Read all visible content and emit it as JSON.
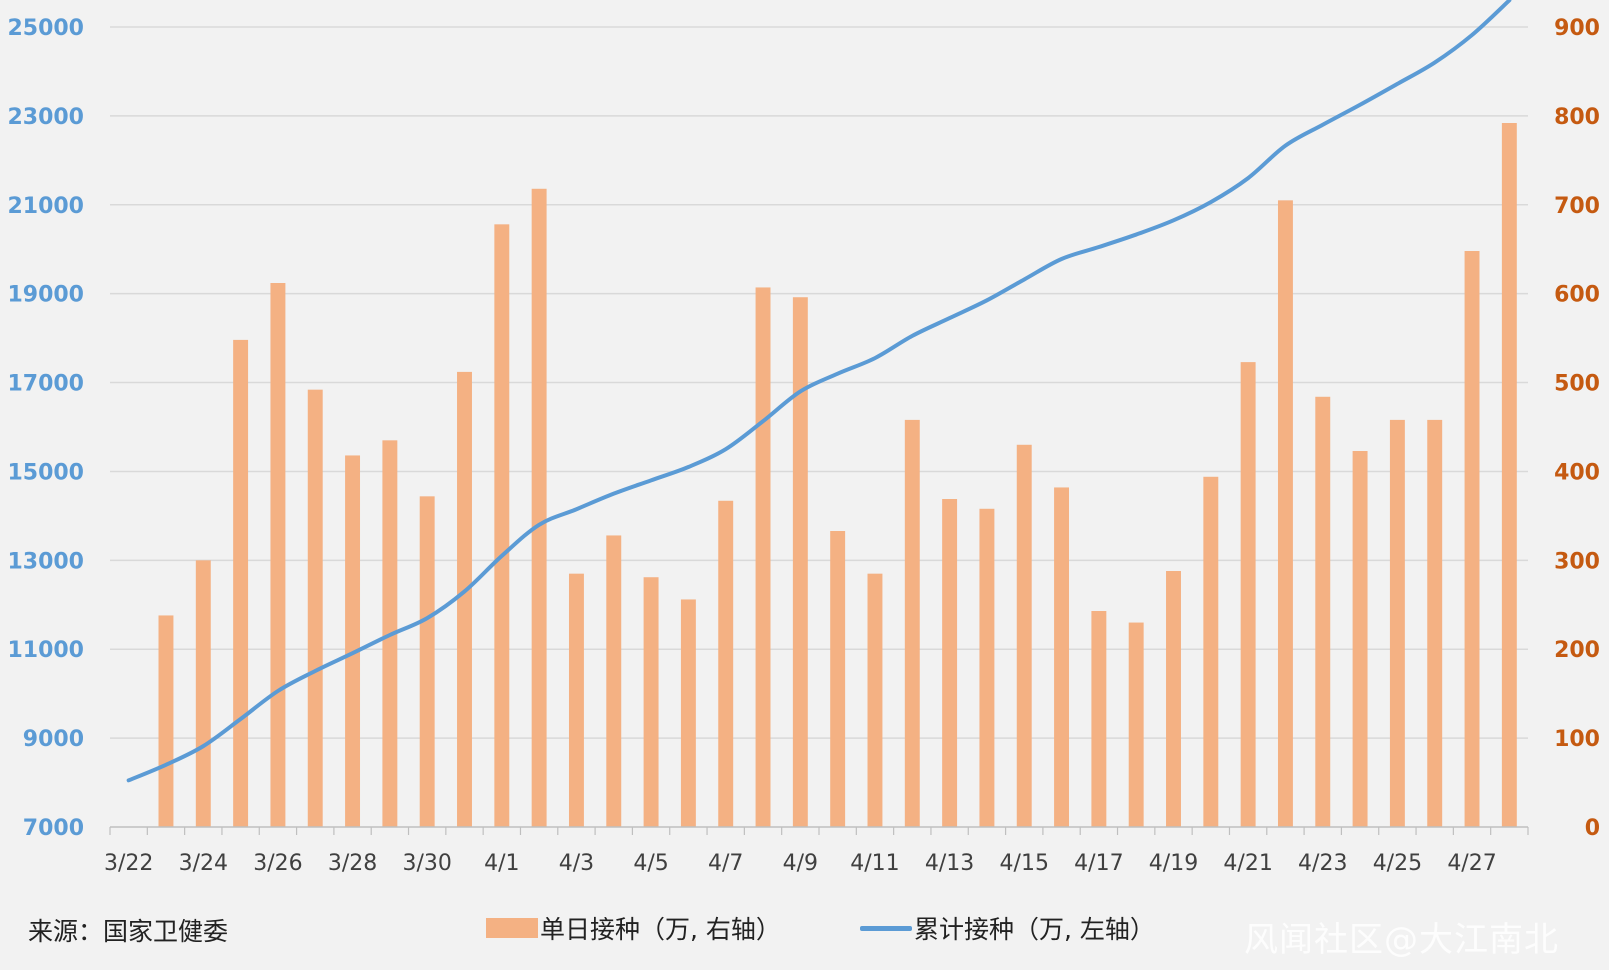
{
  "chart_data": {
    "type": "bar+line",
    "categories": [
      "3/22",
      "3/23",
      "3/24",
      "3/25",
      "3/26",
      "3/27",
      "3/28",
      "3/29",
      "3/30",
      "3/31",
      "4/1",
      "4/2",
      "4/3",
      "4/4",
      "4/5",
      "4/6",
      "4/7",
      "4/8",
      "4/9",
      "4/10",
      "4/11",
      "4/12",
      "4/13",
      "4/14",
      "4/15",
      "4/16",
      "4/17",
      "4/18",
      "4/19",
      "4/20",
      "4/21",
      "4/22",
      "4/23",
      "4/24",
      "4/25",
      "4/26",
      "4/27",
      "4/28"
    ],
    "x_tick_labels": [
      "3/22",
      "3/24",
      "3/26",
      "3/28",
      "3/30",
      "4/1",
      "4/3",
      "4/5",
      "4/7",
      "4/9",
      "4/11",
      "4/13",
      "4/15",
      "4/17",
      "4/19",
      "4/21",
      "4/23",
      "4/25",
      "4/27"
    ],
    "series": [
      {
        "name": "单日接种（万, 右轴）",
        "type": "bar",
        "axis": "right",
        "color": "#f4b183",
        "values": [
          null,
          238,
          300,
          548,
          612,
          492,
          418,
          435,
          372,
          512,
          678,
          718,
          285,
          328,
          281,
          256,
          367,
          607,
          596,
          333,
          285,
          458,
          369,
          358,
          430,
          382,
          243,
          230,
          288,
          394,
          523,
          705,
          484,
          423,
          458,
          458,
          648,
          792
        ]
      },
      {
        "name": "累计接种（万, 左轴）",
        "type": "line",
        "axis": "left",
        "color": "#5b9bd5",
        "values": [
          8050,
          8400,
          8820,
          9430,
          10060,
          10510,
          10910,
          11320,
          11700,
          12300,
          13100,
          13800,
          14150,
          14500,
          14800,
          15100,
          15500,
          16130,
          16800,
          17200,
          17550,
          18050,
          18450,
          18850,
          19320,
          19780,
          20050,
          20330,
          20650,
          21060,
          21600,
          22330,
          22800,
          23250,
          23720,
          24200,
          24820,
          25600
        ]
      }
    ],
    "y_left": {
      "min": 7000,
      "max": 25000,
      "ticks": [
        "7000",
        "9000",
        "11000",
        "13000",
        "15000",
        "17000",
        "19000",
        "21000",
        "23000",
        "25000"
      ],
      "color": "#5b9bd5"
    },
    "y_right": {
      "min": 0,
      "max": 900,
      "ticks": [
        "0",
        "100",
        "200",
        "300",
        "400",
        "500",
        "600",
        "700",
        "800",
        "900"
      ],
      "color": "#c55a11"
    },
    "grid": true,
    "legend_position": "bottom"
  },
  "footer": {
    "source": "来源：国家卫健委",
    "legend_bar": "单日接种（万, 右轴）",
    "legend_line": "累计接种（万, 左轴）",
    "watermark": "风闻社区@大江南北"
  }
}
